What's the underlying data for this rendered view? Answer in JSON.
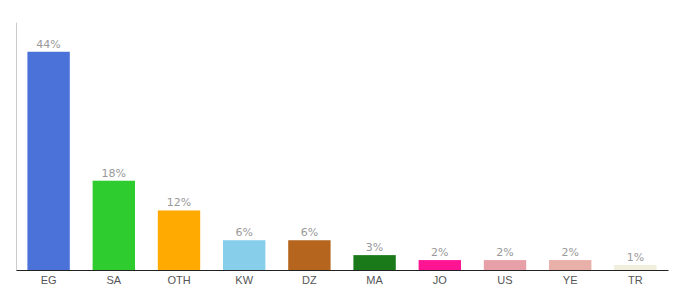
{
  "chart_data": {
    "type": "bar",
    "categories": [
      "EG",
      "SA",
      "OTH",
      "KW",
      "DZ",
      "MA",
      "JO",
      "US",
      "YE",
      "TR"
    ],
    "values": [
      44,
      18,
      12,
      6,
      6,
      3,
      2,
      2,
      2,
      1
    ],
    "value_labels": [
      "44%",
      "18%",
      "12%",
      "6%",
      "6%",
      "3%",
      "2%",
      "2%",
      "2%",
      "1%"
    ],
    "colors": [
      "#4a72d9",
      "#2ecc2e",
      "#ffaa00",
      "#87ceeb",
      "#b5651d",
      "#1a7a1a",
      "#ff1493",
      "#e8a0a8",
      "#e8b0a8",
      "#f0eedc"
    ],
    "ylim": [
      0,
      50
    ],
    "data_labels": true,
    "tick_labels": "x",
    "grid": false
  }
}
